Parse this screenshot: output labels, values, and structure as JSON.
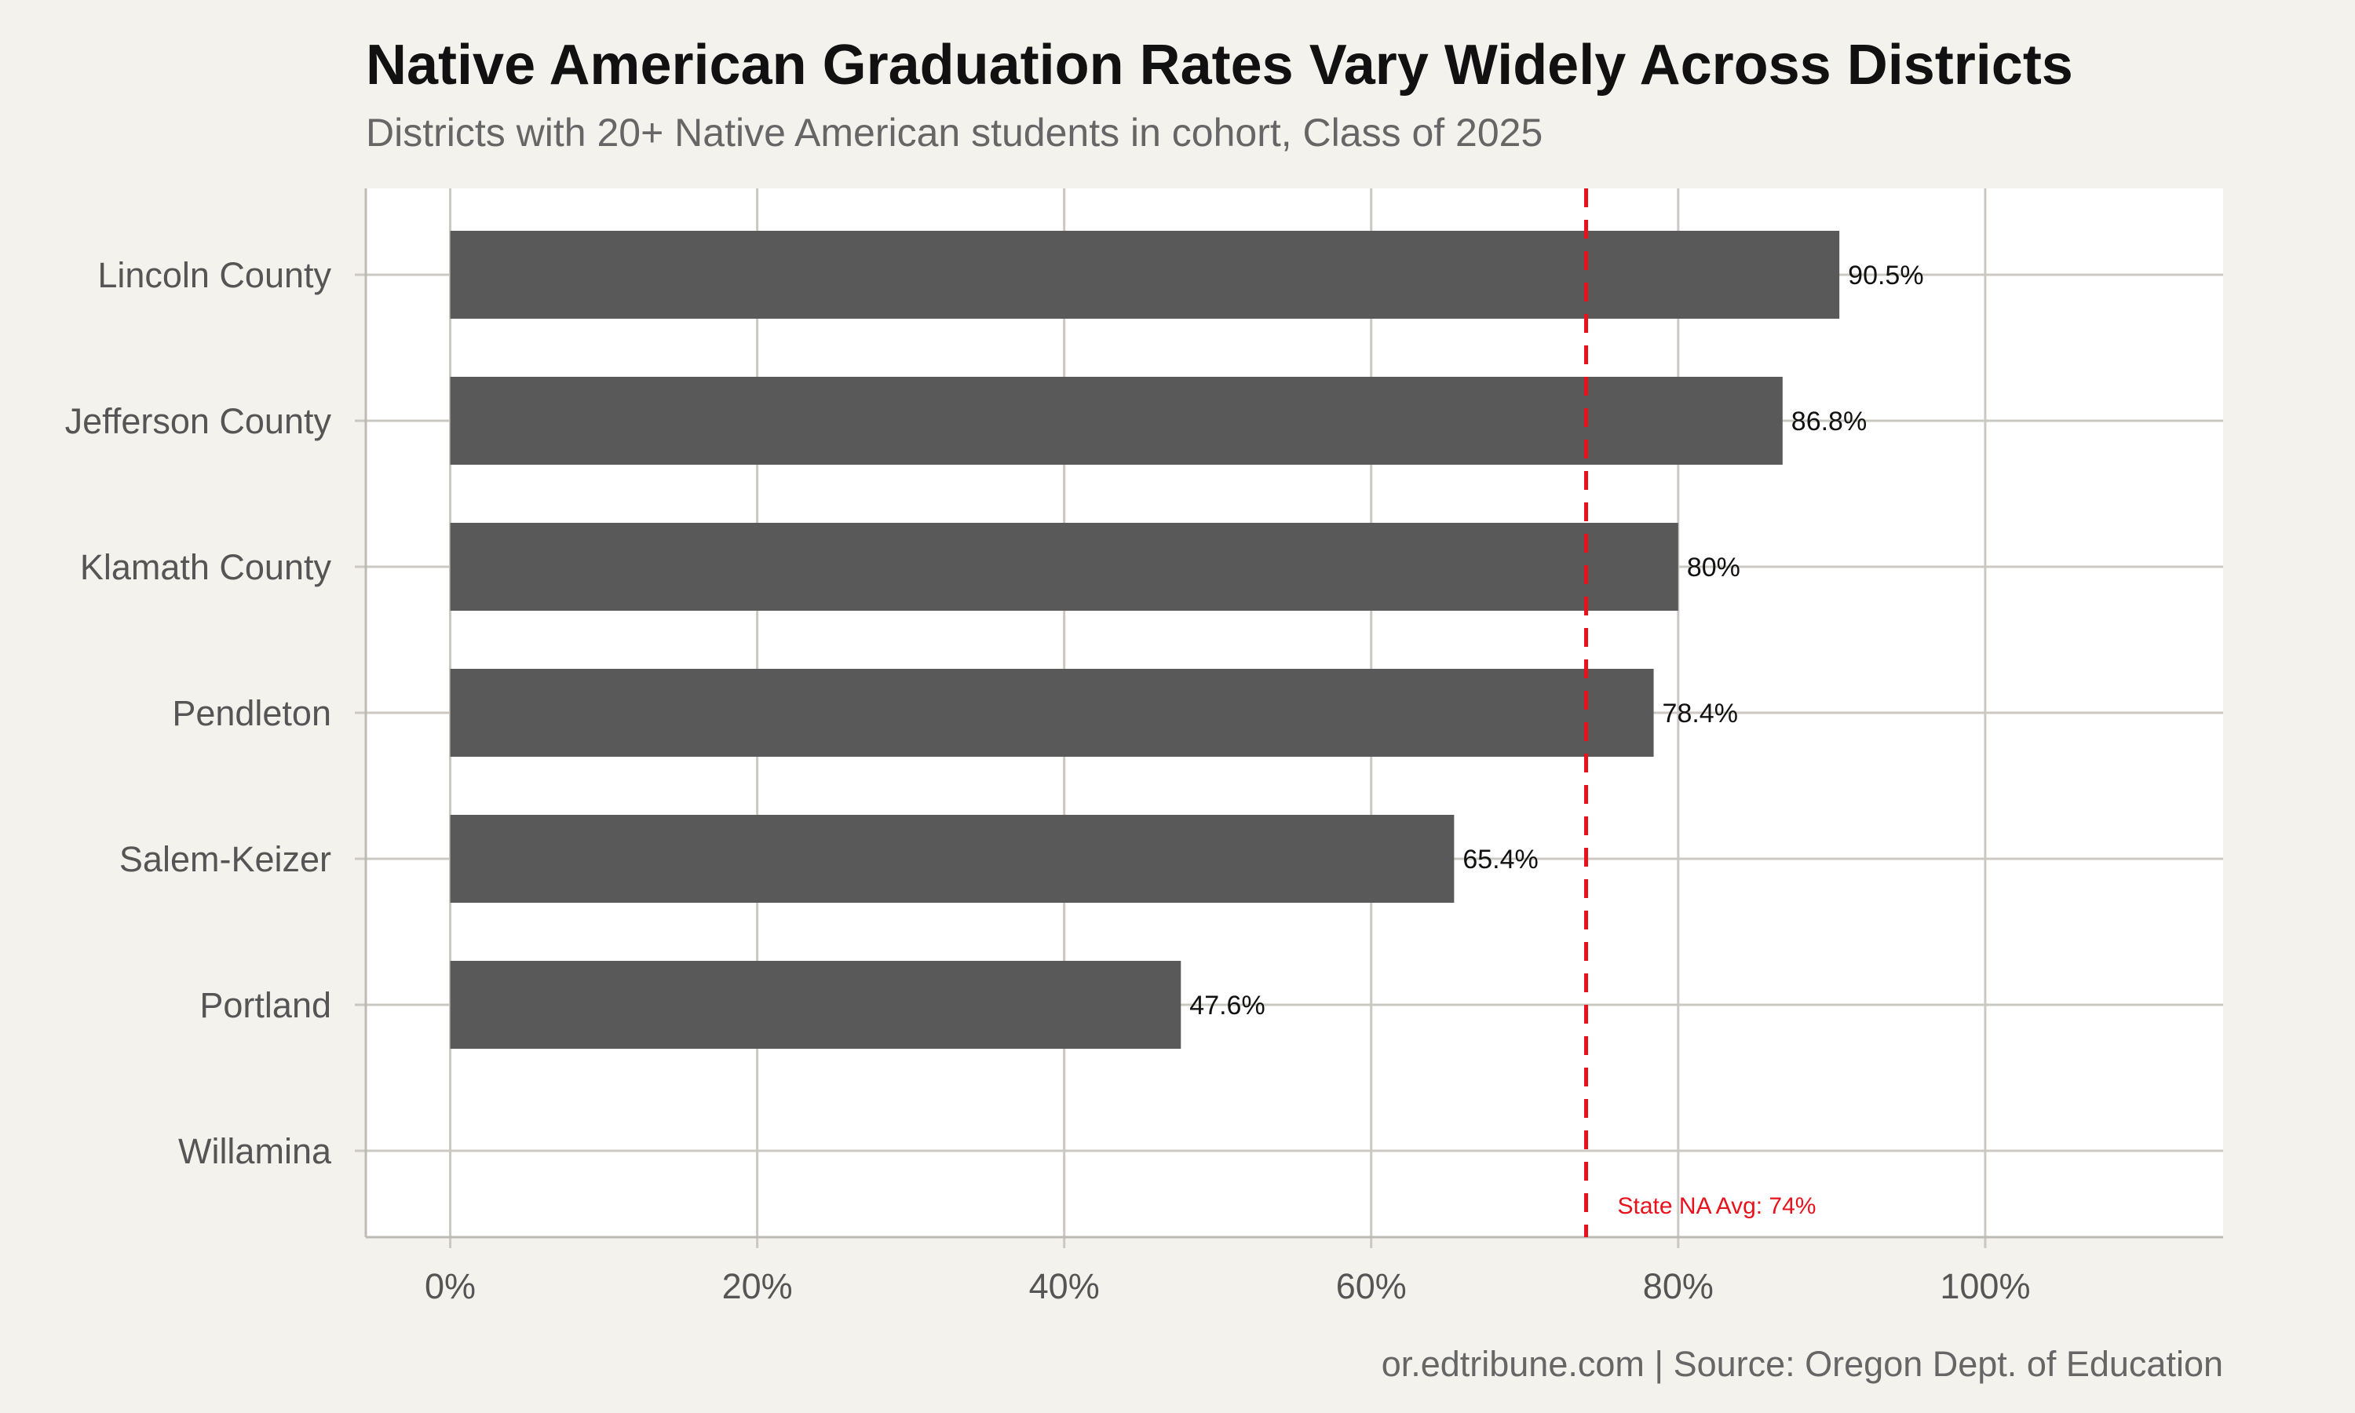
{
  "chart_data": {
    "type": "bar",
    "orientation": "horizontal",
    "title": "Native American Graduation Rates Vary Widely Across Districts",
    "subtitle": "Districts with 20+ Native American students in cohort, Class of 2025",
    "caption": "or.edtribune.com | Source: Oregon Dept. of Education",
    "xlabel": "",
    "ylabel": "",
    "categories": [
      "Lincoln County",
      "Jefferson County",
      "Klamath County",
      "Pendleton",
      "Salem-Keizer",
      "Portland",
      "Willamina"
    ],
    "values": [
      90.5,
      86.8,
      80,
      78.4,
      65.4,
      47.6,
      null
    ],
    "value_labels": [
      "90.5%",
      "86.8%",
      "80%",
      "78.4%",
      "65.4%",
      "47.6%",
      ""
    ],
    "x_ticks": [
      0,
      20,
      40,
      60,
      80,
      100
    ],
    "x_tick_labels": [
      "0%",
      "20%",
      "40%",
      "60%",
      "80%",
      "100%"
    ],
    "xlim": [
      -5.5,
      115.5
    ],
    "grid": true,
    "reference_line": {
      "value": 74,
      "label": "State NA Avg: 74%",
      "color": "#e8121d",
      "style": "dashed"
    },
    "colors": {
      "bar": "#595959",
      "panel": "#ffffff",
      "background": "#f4f2ed",
      "grid": "#cbc8c2"
    }
  }
}
